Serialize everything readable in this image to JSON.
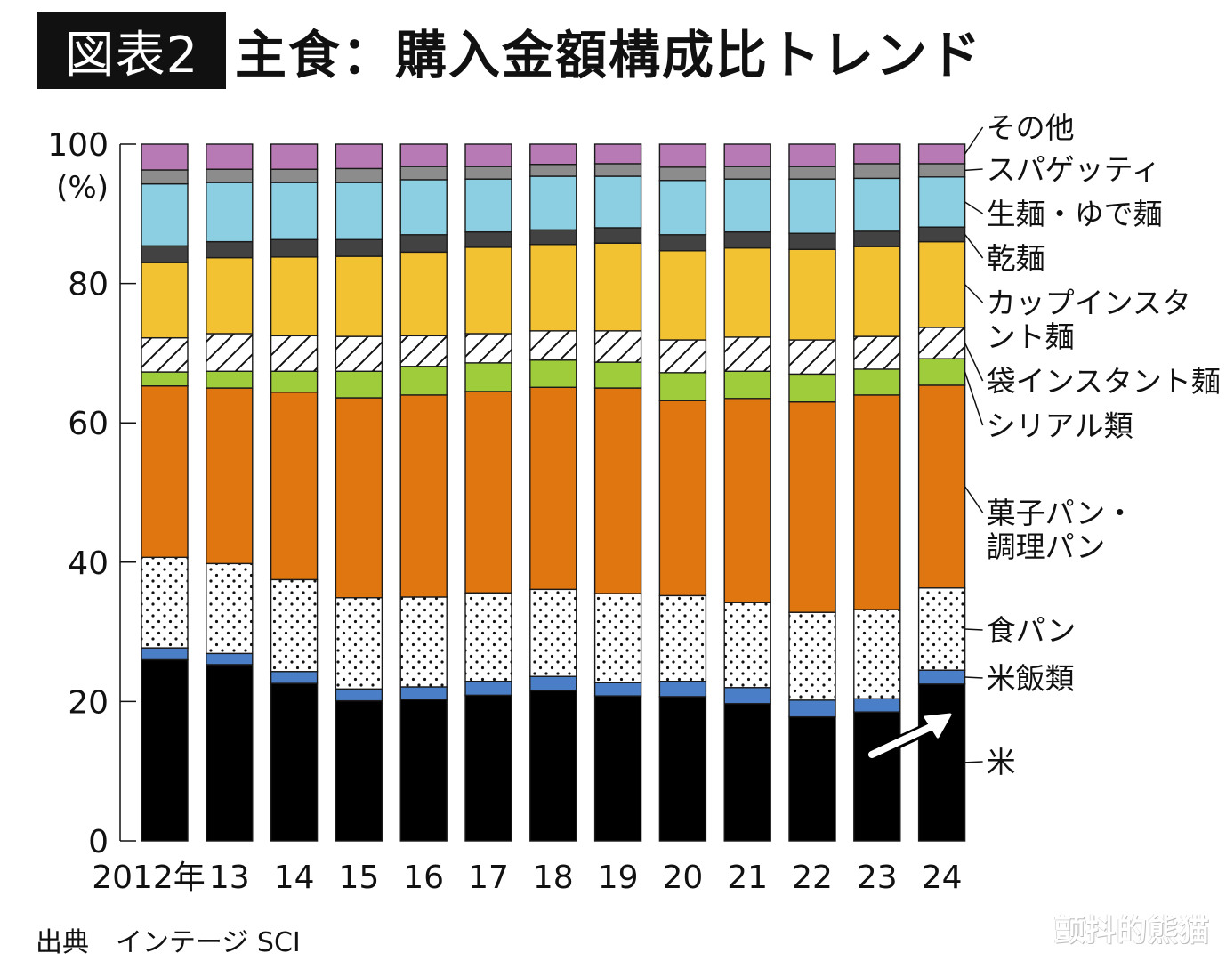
{
  "title": {
    "badge": "図表2",
    "main": "主食：購入金額構成比トレンド"
  },
  "source": "出典　インテージ SCI",
  "watermark": "颤抖的熊猫",
  "chart_data": {
    "type": "bar",
    "stacked": true,
    "title": "主食：購入金額構成比トレンド",
    "xlabel": "",
    "ylabel": "(%)",
    "ylim": [
      0,
      100
    ],
    "yticks": [
      0,
      20,
      40,
      60,
      80,
      100
    ],
    "ytick_labels": [
      "0",
      "20",
      "40",
      "60",
      "80",
      "100"
    ],
    "ylabel_unit": "(%)",
    "categories": [
      "2012年",
      "13",
      "14",
      "15",
      "16",
      "17",
      "18",
      "19",
      "20",
      "21",
      "22",
      "23",
      "24"
    ],
    "legend_placement": "right",
    "annotation": "arrow pointing up on 2024 rice (米) segment",
    "series": [
      {
        "name": "米",
        "color": "#000000",
        "pattern": "solid",
        "values": [
          26.0,
          25.3,
          22.6,
          20.1,
          20.3,
          20.9,
          21.6,
          20.8,
          20.7,
          19.7,
          17.8,
          18.5,
          22.5
        ]
      },
      {
        "name": "米飯類",
        "color": "#4a7fc8",
        "pattern": "solid",
        "values": [
          1.7,
          1.6,
          1.7,
          1.7,
          1.8,
          2.0,
          2.0,
          1.9,
          2.2,
          2.3,
          2.4,
          1.9,
          2.0
        ]
      },
      {
        "name": "食パン",
        "color": "#ffffff",
        "pattern": "dots",
        "values": [
          13.0,
          12.9,
          13.2,
          13.1,
          12.9,
          12.7,
          12.5,
          12.8,
          12.3,
          12.2,
          12.6,
          12.8,
          11.8
        ]
      },
      {
        "name": "菓子パン・調理パン",
        "color": "#e07610",
        "pattern": "solid",
        "values": [
          24.6,
          25.2,
          26.9,
          28.7,
          29.0,
          28.9,
          29.0,
          29.5,
          28.0,
          29.3,
          30.2,
          30.8,
          29.1
        ]
      },
      {
        "name": "シリアル類",
        "color": "#9fcc3a",
        "pattern": "solid",
        "values": [
          2.0,
          2.4,
          3.0,
          3.8,
          4.1,
          4.1,
          3.9,
          3.7,
          4.0,
          3.9,
          4.0,
          3.7,
          3.8
        ]
      },
      {
        "name": "袋インスタント麺",
        "color": "#ffffff",
        "pattern": "hatch",
        "values": [
          4.9,
          5.4,
          5.1,
          5.0,
          4.4,
          4.2,
          4.2,
          4.5,
          4.7,
          4.9,
          4.9,
          4.7,
          4.5
        ]
      },
      {
        "name": "カップインスタント麺",
        "color": "#f2c232",
        "pattern": "solid",
        "values": [
          10.8,
          10.9,
          11.3,
          11.5,
          12.0,
          12.4,
          12.4,
          12.6,
          12.8,
          12.8,
          13.0,
          12.9,
          12.3
        ]
      },
      {
        "name": "乾麺",
        "color": "#424242",
        "pattern": "solid",
        "values": [
          2.4,
          2.3,
          2.5,
          2.4,
          2.5,
          2.2,
          2.1,
          2.2,
          2.3,
          2.3,
          2.3,
          2.2,
          2.1
        ]
      },
      {
        "name": "生麺・ゆで麺",
        "color": "#8ccfe3",
        "pattern": "solid",
        "values": [
          8.9,
          8.5,
          8.2,
          8.2,
          7.9,
          7.6,
          7.7,
          7.4,
          7.8,
          7.6,
          7.8,
          7.6,
          7.2
        ]
      },
      {
        "name": "スパゲッティ",
        "color": "#8c8c8c",
        "pattern": "solid",
        "values": [
          2.0,
          1.9,
          1.9,
          2.0,
          1.9,
          1.8,
          1.7,
          1.8,
          1.9,
          1.8,
          1.8,
          2.1,
          1.9
        ]
      },
      {
        "name": "その他",
        "color": "#b77ab5",
        "pattern": "solid",
        "values": [
          3.7,
          3.6,
          3.6,
          3.5,
          3.2,
          3.2,
          2.9,
          2.8,
          3.3,
          3.2,
          3.2,
          2.8,
          2.8
        ]
      }
    ],
    "legend_labels": [
      {
        "series": "その他",
        "text": [
          "その他"
        ]
      },
      {
        "series": "スパゲッティ",
        "text": [
          "スパゲッティ"
        ]
      },
      {
        "series": "生麺・ゆで麺",
        "text": [
          "生麺・ゆで麺"
        ]
      },
      {
        "series": "乾麺",
        "text": [
          "乾麺"
        ]
      },
      {
        "series": "カップインスタント麺",
        "text": [
          "カップインスタ",
          "ント麺"
        ]
      },
      {
        "series": "袋インスタント麺",
        "text": [
          "袋インスタント麺"
        ]
      },
      {
        "series": "シリアル類",
        "text": [
          "シリアル類"
        ]
      },
      {
        "series": "菓子パン・調理パン",
        "text": [
          "菓子パン・",
          "調理パン"
        ]
      },
      {
        "series": "食パン",
        "text": [
          "食パン"
        ]
      },
      {
        "series": "米飯類",
        "text": [
          "米飯類"
        ]
      },
      {
        "series": "米",
        "text": [
          "米"
        ]
      }
    ]
  }
}
